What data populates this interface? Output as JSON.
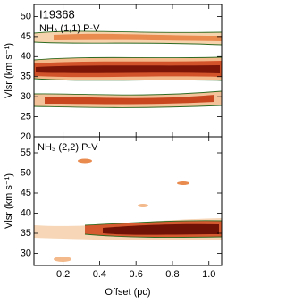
{
  "chart_data": [
    {
      "type": "heatmap",
      "label": "I19368",
      "title": "NH₃ (1,1) P-V",
      "ylabel": "Vlsr (km s⁻¹)",
      "xlim": [
        0.04,
        1.07
      ],
      "xticks": [
        0.2,
        0.4,
        0.6,
        0.8,
        1
      ],
      "ylim": [
        20,
        53
      ],
      "yticks": [
        20,
        25,
        30,
        35,
        40,
        45,
        50
      ]
    },
    {
      "type": "heatmap",
      "title": "NH₃ (2,2) P-V",
      "ylabel": "Vlsr (km s⁻¹)",
      "xlabel": "Offset (pc)",
      "xlim": [
        0.04,
        1.07
      ],
      "xticks": [
        0.2,
        0.4,
        0.6,
        0.8,
        {
          "value": 1,
          "label": "1.0"
        }
      ],
      "ylim": [
        27,
        59
      ],
      "yticks": [
        30,
        35,
        40,
        45,
        50,
        55
      ]
    }
  ]
}
